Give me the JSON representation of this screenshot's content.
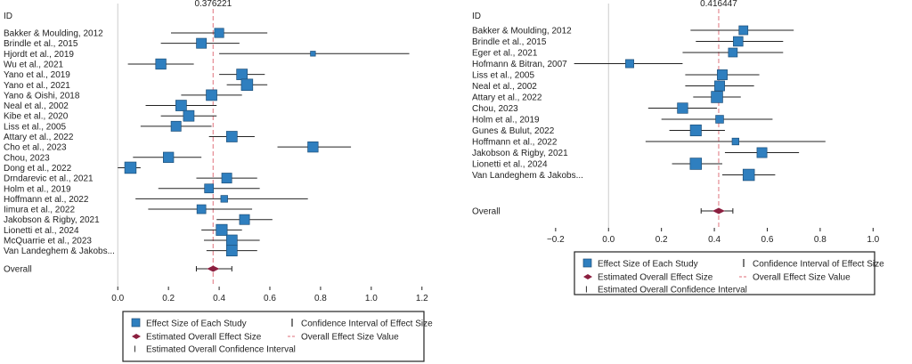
{
  "chart_data": [
    {
      "type": "forest",
      "id_header": "ID",
      "overall_label": "Overall",
      "overall_value_label": "0.376221",
      "overall": {
        "estimate": 0.376221,
        "lower": 0.31,
        "upper": 0.45
      },
      "xlim": [
        -0.05,
        1.25
      ],
      "xticks": [
        0.0,
        0.2,
        0.4,
        0.6,
        0.8,
        1.0,
        1.2
      ],
      "tick_labels": [
        "0.0",
        "0.2",
        "0.4",
        "0.6",
        "0.8",
        "1.0",
        "1.2"
      ],
      "studies": [
        {
          "label": "Bakker & Moulding, 2012",
          "estimate": 0.4,
          "lower": 0.21,
          "upper": 0.59,
          "weight": 0.8
        },
        {
          "label": "Brindle et al., 2015",
          "estimate": 0.33,
          "lower": 0.17,
          "upper": 0.48,
          "weight": 0.9
        },
        {
          "label": "Hjordt et al., 2019",
          "estimate": 0.77,
          "lower": 0.4,
          "upper": 1.15,
          "weight": 0.2
        },
        {
          "label": "Wu et al., 2021",
          "estimate": 0.17,
          "lower": 0.04,
          "upper": 0.3,
          "weight": 0.95
        },
        {
          "label": "Yano et al., 2019",
          "estimate": 0.49,
          "lower": 0.4,
          "upper": 0.58,
          "weight": 1.0
        },
        {
          "label": "Yano et al., 2021",
          "estimate": 0.51,
          "lower": 0.43,
          "upper": 0.59,
          "weight": 1.1
        },
        {
          "label": "Yano & Oishi, 2018",
          "estimate": 0.37,
          "lower": 0.25,
          "upper": 0.49,
          "weight": 1.0
        },
        {
          "label": "Neal et al., 2002",
          "estimate": 0.25,
          "lower": 0.11,
          "upper": 0.39,
          "weight": 1.0
        },
        {
          "label": "Kibe et al., 2020",
          "estimate": 0.28,
          "lower": 0.17,
          "upper": 0.39,
          "weight": 1.0
        },
        {
          "label": "Liss et al., 2005",
          "estimate": 0.23,
          "lower": 0.09,
          "upper": 0.37,
          "weight": 0.9
        },
        {
          "label": "Attary et al., 2022",
          "estimate": 0.45,
          "lower": 0.36,
          "upper": 0.54,
          "weight": 1.0
        },
        {
          "label": "Cho et al., 2023",
          "estimate": 0.77,
          "lower": 0.63,
          "upper": 0.92,
          "weight": 0.95
        },
        {
          "label": "Chou, 2023",
          "estimate": 0.2,
          "lower": 0.06,
          "upper": 0.33,
          "weight": 0.95
        },
        {
          "label": "Dong et al., 2022",
          "estimate": 0.05,
          "lower": 0.0,
          "upper": 0.09,
          "weight": 1.1
        },
        {
          "label": "Drndarevic et al., 2021",
          "estimate": 0.43,
          "lower": 0.31,
          "upper": 0.55,
          "weight": 0.9
        },
        {
          "label": "Holm et al., 2019",
          "estimate": 0.36,
          "lower": 0.16,
          "upper": 0.56,
          "weight": 0.75
        },
        {
          "label": "Hoffmann et al., 2022",
          "estimate": 0.42,
          "lower": 0.07,
          "upper": 0.75,
          "weight": 0.45
        },
        {
          "label": "Iimura et al., 2022",
          "estimate": 0.33,
          "lower": 0.12,
          "upper": 0.53,
          "weight": 0.75
        },
        {
          "label": "Jakobson & Rigby, 2021",
          "estimate": 0.5,
          "lower": 0.39,
          "upper": 0.61,
          "weight": 0.9
        },
        {
          "label": "Lionetti et al., 2024",
          "estimate": 0.41,
          "lower": 0.33,
          "upper": 0.49,
          "weight": 1.05
        },
        {
          "label": "McQuarrie et al., 2023",
          "estimate": 0.45,
          "lower": 0.34,
          "upper": 0.56,
          "weight": 1.0
        },
        {
          "label": "Van Landeghem & Jakobs...",
          "estimate": 0.45,
          "lower": 0.35,
          "upper": 0.55,
          "weight": 1.0
        }
      ],
      "legend": [
        {
          "key": "study",
          "label": "Effect Size of Each Study"
        },
        {
          "key": "ci",
          "label": "Confidence Interval of Effect Size"
        },
        {
          "key": "overall",
          "label": "Estimated Overall Effect Size"
        },
        {
          "key": "overall_line",
          "label": "Overall Effect Size Value"
        },
        {
          "key": "overall_ci",
          "label": "Estimated Overall Confidence Interval"
        }
      ]
    },
    {
      "type": "forest",
      "id_header": "ID",
      "overall_label": "Overall",
      "overall_value_label": "0.416447",
      "overall": {
        "estimate": 0.416447,
        "lower": 0.35,
        "upper": 0.47
      },
      "xlim": [
        -0.25,
        1.1
      ],
      "xticks": [
        -0.2,
        0.0,
        0.2,
        0.4,
        0.6,
        0.8,
        1.0
      ],
      "tick_labels": [
        "−0.2",
        "0.0",
        "0.2",
        "0.4",
        "0.6",
        "0.8",
        "1.0"
      ],
      "studies": [
        {
          "label": "Bakker & Moulding, 2012",
          "estimate": 0.51,
          "lower": 0.31,
          "upper": 0.7,
          "weight": 0.75
        },
        {
          "label": "Brindle et al., 2015",
          "estimate": 0.49,
          "lower": 0.33,
          "upper": 0.66,
          "weight": 0.85
        },
        {
          "label": "Eger et al., 2021",
          "estimate": 0.47,
          "lower": 0.28,
          "upper": 0.66,
          "weight": 0.75
        },
        {
          "label": "Hofmann & Bitran, 2007",
          "estimate": 0.08,
          "lower": -0.13,
          "upper": 0.28,
          "weight": 0.65
        },
        {
          "label": "Liss et al., 2005",
          "estimate": 0.43,
          "lower": 0.29,
          "upper": 0.57,
          "weight": 0.9
        },
        {
          "label": "Neal et al., 2002",
          "estimate": 0.42,
          "lower": 0.29,
          "upper": 0.55,
          "weight": 0.9
        },
        {
          "label": "Attary et al., 2022",
          "estimate": 0.41,
          "lower": 0.32,
          "upper": 0.5,
          "weight": 1.1
        },
        {
          "label": "Chou, 2023",
          "estimate": 0.28,
          "lower": 0.15,
          "upper": 0.41,
          "weight": 0.95
        },
        {
          "label": "Holm et al., 2019",
          "estimate": 0.42,
          "lower": 0.2,
          "upper": 0.62,
          "weight": 0.6
        },
        {
          "label": "Gunes & Bulut, 2022",
          "estimate": 0.33,
          "lower": 0.23,
          "upper": 0.44,
          "weight": 1.05
        },
        {
          "label": "Hoffmann et al., 2022",
          "estimate": 0.48,
          "lower": 0.14,
          "upper": 0.82,
          "weight": 0.45
        },
        {
          "label": "Jakobson & Rigby, 2021",
          "estimate": 0.58,
          "lower": 0.44,
          "upper": 0.72,
          "weight": 0.9
        },
        {
          "label": "Lionetti et al., 2024",
          "estimate": 0.33,
          "lower": 0.24,
          "upper": 0.43,
          "weight": 1.1
        },
        {
          "label": "Van Landeghem & Jakobs...",
          "estimate": 0.53,
          "lower": 0.43,
          "upper": 0.63,
          "weight": 1.1
        }
      ],
      "legend": [
        {
          "key": "study",
          "label": "Effect Size of Each Study"
        },
        {
          "key": "ci",
          "label": "Confidence Interval of Effect Size"
        },
        {
          "key": "overall",
          "label": "Estimated Overall Effect Size"
        },
        {
          "key": "overall_line",
          "label": "Overall Effect Size Value"
        },
        {
          "key": "overall_ci",
          "label": "Estimated Overall Confidence Interval"
        }
      ]
    }
  ],
  "colors": {
    "marker_fill": "#2f7fbf",
    "marker_stroke": "#1d4f79",
    "diamond": "#8b1f3f",
    "ref_line": "#e58a92",
    "zero_line": "#cccccc",
    "ci_line": "#222222"
  }
}
